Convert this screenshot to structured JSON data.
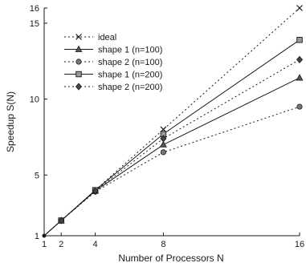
{
  "chart_data": {
    "type": "line",
    "xlabel": "Number of Processors N",
    "ylabel": "Speedup S(N)",
    "xlim": [
      1,
      16
    ],
    "ylim": [
      1,
      16
    ],
    "xticks": [
      1,
      2,
      4,
      8,
      16
    ],
    "xtick_labels": [
      "1",
      "2",
      "4",
      "8",
      "16"
    ],
    "yticks": [
      1,
      5,
      10,
      15,
      16
    ],
    "ytick_labels": [
      "1",
      "5",
      "10",
      "15",
      "16"
    ],
    "grid": false,
    "legend_position": "top-left",
    "x": [
      1,
      2,
      4,
      8,
      16
    ],
    "series": [
      {
        "name": "ideal",
        "marker": "x",
        "dash": "dotted",
        "values": [
          1,
          2,
          4,
          8,
          16
        ]
      },
      {
        "name": "shape 1 (n=100)",
        "marker": "triangle",
        "dash": "solid",
        "values": [
          1,
          2,
          3.95,
          7.0,
          11.4
        ]
      },
      {
        "name": "shape 2 (n=100)",
        "marker": "circle",
        "dash": "dotted",
        "values": [
          1,
          2,
          3.9,
          6.5,
          9.5
        ]
      },
      {
        "name": "shape 1 (n=200)",
        "marker": "square",
        "dash": "solid",
        "values": [
          1,
          2,
          4,
          7.7,
          13.9
        ]
      },
      {
        "name": "shape 2 (n=200)",
        "marker": "diamond",
        "dash": "dotted",
        "values": [
          1,
          2,
          3.95,
          7.4,
          12.6
        ]
      }
    ]
  }
}
